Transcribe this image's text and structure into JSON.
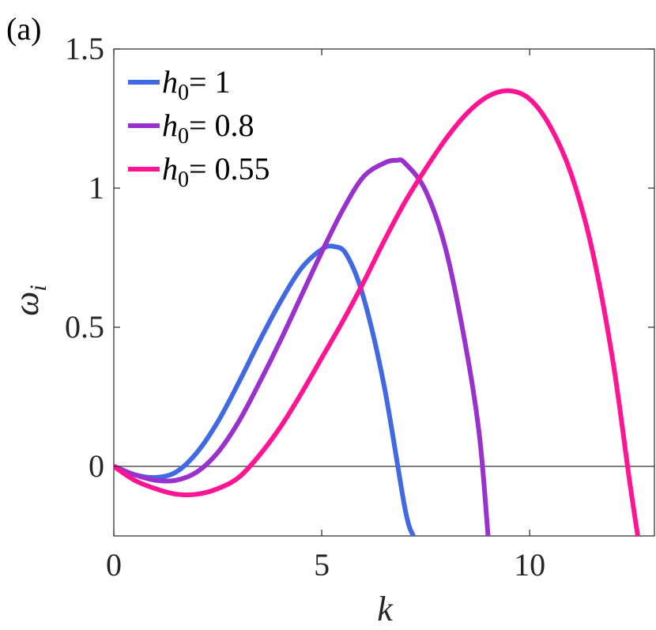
{
  "panel_label": "(a)",
  "chart_data": {
    "type": "line",
    "xlabel": "k",
    "ylabel": "ω_i",
    "xlim": [
      0,
      13.0
    ],
    "ylim": [
      -0.25,
      1.5
    ],
    "xticks": [
      0,
      5,
      10
    ],
    "xtick_labels": [
      "0",
      "5",
      "10"
    ],
    "yticks": [
      0,
      0.5,
      1,
      1.5
    ],
    "ytick_labels": [
      "0",
      "0.5",
      "1",
      "1.5"
    ],
    "grid": false,
    "legend_position": "top-left",
    "zero_line": true,
    "series": [
      {
        "legend_symbol": "h",
        "legend_subscript": "0",
        "legend_value": "= 1",
        "color": "#4169E1",
        "x": [
          0,
          0.5,
          1.0,
          1.5,
          2.0,
          2.5,
          3.0,
          3.5,
          4.0,
          4.5,
          5.0,
          5.3,
          5.6,
          6.0,
          6.5,
          7.0,
          7.2
        ],
        "y": [
          0,
          -0.03,
          -0.04,
          -0.02,
          0.05,
          0.16,
          0.3,
          0.45,
          0.59,
          0.71,
          0.78,
          0.79,
          0.76,
          0.61,
          0.29,
          -0.15,
          -0.25
        ]
      },
      {
        "legend_symbol": "h",
        "legend_subscript": "0",
        "legend_value": "= 0.8",
        "color": "#9932CC",
        "x": [
          0,
          0.5,
          1.0,
          1.5,
          2.0,
          2.5,
          3.0,
          3.5,
          4.0,
          4.5,
          5.0,
          5.5,
          6.0,
          6.5,
          6.8,
          7.0,
          7.5,
          8.0,
          8.5,
          8.8,
          9.0
        ],
        "y": [
          0,
          -0.03,
          -0.05,
          -0.05,
          -0.02,
          0.05,
          0.16,
          0.3,
          0.45,
          0.61,
          0.77,
          0.92,
          1.04,
          1.09,
          1.1,
          1.09,
          0.99,
          0.77,
          0.4,
          0.1,
          -0.25
        ]
      },
      {
        "legend_symbol": "h",
        "legend_subscript": "0",
        "legend_value": "= 0.55",
        "color": "#FF1493",
        "x": [
          0,
          0.5,
          1.0,
          1.5,
          2.0,
          2.5,
          3.0,
          3.5,
          4.0,
          4.5,
          5.0,
          5.5,
          6.0,
          6.5,
          7.0,
          7.5,
          8.0,
          8.5,
          9.0,
          9.5,
          10.0,
          10.5,
          11.0,
          11.5,
          12.0,
          12.4,
          12.6
        ],
        "y": [
          0,
          -0.05,
          -0.08,
          -0.1,
          -0.1,
          -0.08,
          -0.04,
          0.04,
          0.14,
          0.26,
          0.39,
          0.52,
          0.66,
          0.81,
          0.95,
          1.07,
          1.18,
          1.27,
          1.33,
          1.35,
          1.32,
          1.22,
          1.05,
          0.78,
          0.38,
          -0.05,
          -0.25
        ]
      }
    ]
  }
}
